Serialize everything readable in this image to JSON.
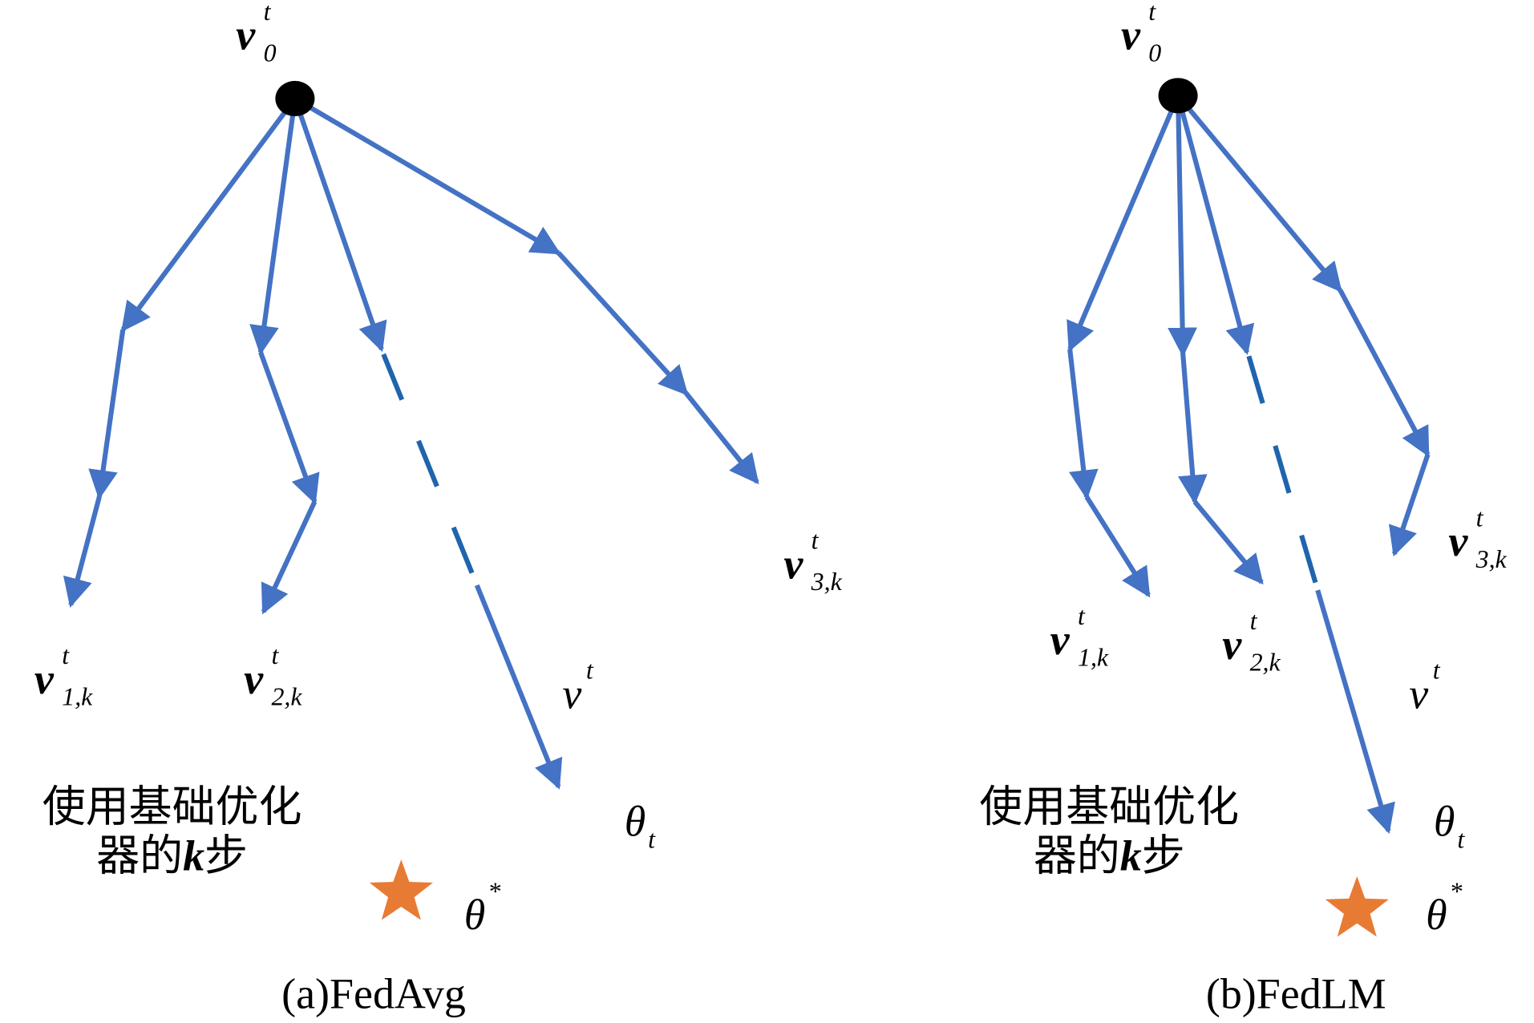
{
  "panels": [
    {
      "caption": "(a)FedAvg",
      "labels": [
        {
          "base": "v",
          "sup": "t",
          "sub": "0"
        },
        {
          "base": "v",
          "sup": "t",
          "sub": "1,k"
        },
        {
          "base": "v",
          "sup": "t",
          "sub": "2,k"
        },
        {
          "base": "v",
          "sup": "t",
          "sub": "3,k"
        },
        {
          "base": "v",
          "sup": "t"
        },
        {
          "base": "θ",
          "sub": "t"
        },
        {
          "base": "θ",
          "sup": "*"
        }
      ],
      "note": {
        "line1": "使用基础优化",
        "line2": [
          "器的",
          "k",
          "步"
        ]
      }
    },
    {
      "caption": "(b)FedLM",
      "labels": [
        {
          "base": "v",
          "sup": "t",
          "sub": "0"
        },
        {
          "base": "v",
          "sup": "t",
          "sub": "1,k"
        },
        {
          "base": "v",
          "sup": "t",
          "sub": "2,k"
        },
        {
          "base": "v",
          "sup": "t",
          "sub": "3,k"
        },
        {
          "base": "v",
          "sup": "t"
        },
        {
          "base": "θ",
          "sub": "t"
        },
        {
          "base": "θ",
          "sup": "*"
        }
      ],
      "note": {
        "line1": "使用基础优化",
        "line2": [
          "器的",
          "k",
          "步"
        ]
      }
    }
  ]
}
